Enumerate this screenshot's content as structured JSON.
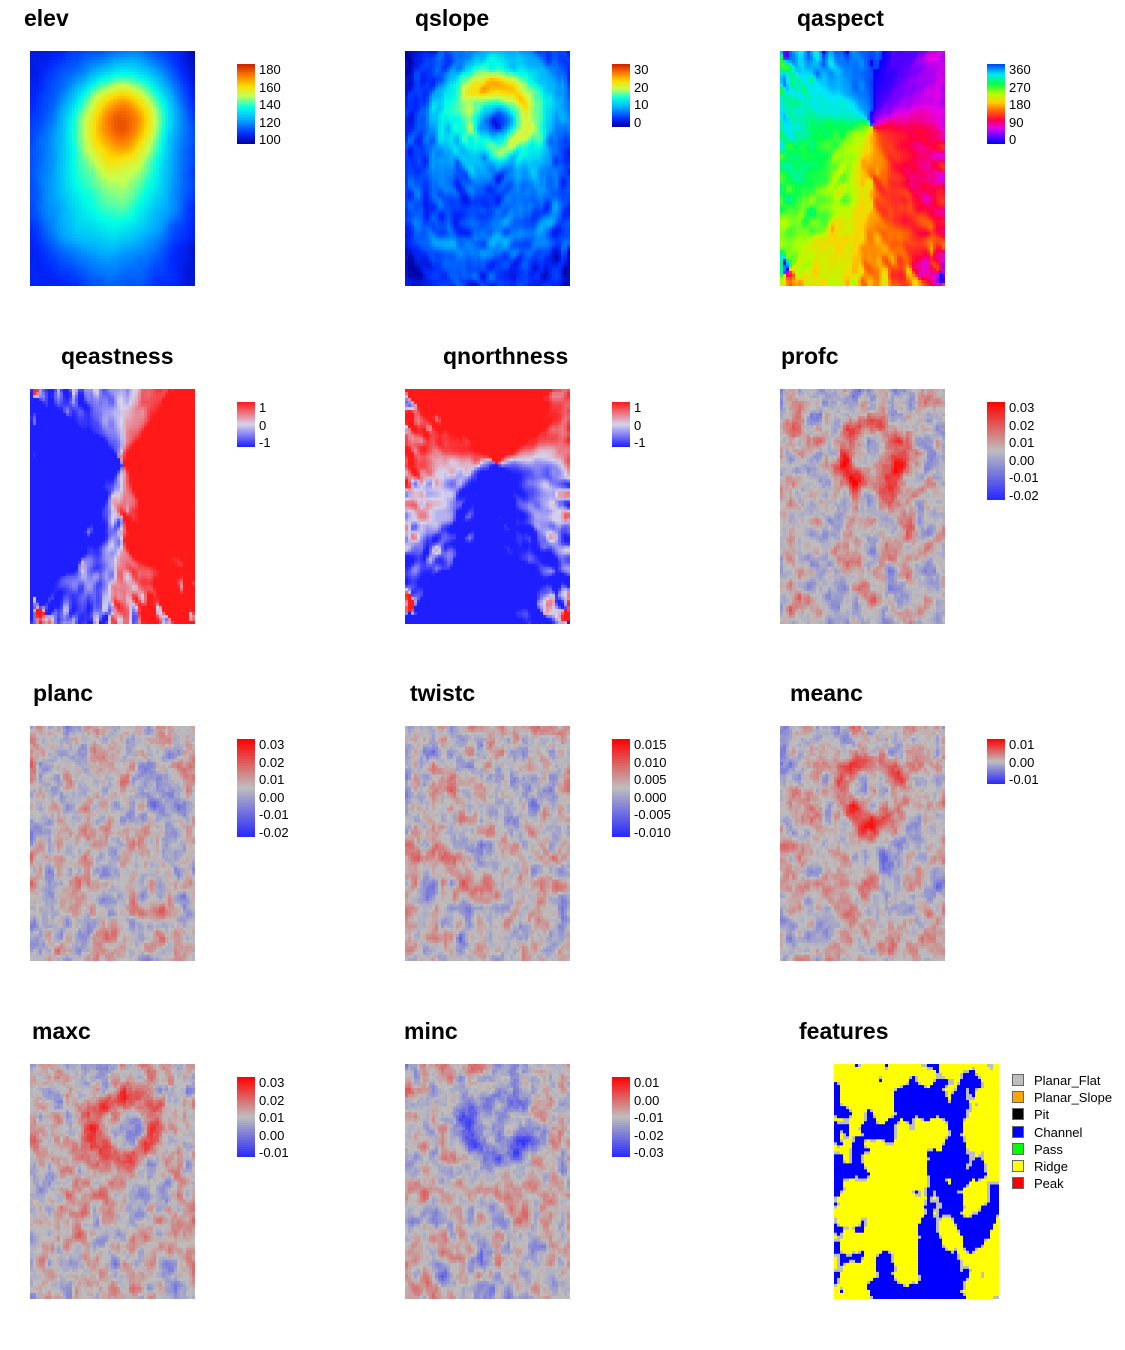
{
  "chart_data": [
    {
      "type": "heatmap",
      "title": "elev",
      "colormap": "rainbow",
      "legend": [
        "180",
        "160",
        "140",
        "120",
        "100"
      ],
      "zlim": [
        100,
        190
      ]
    },
    {
      "type": "heatmap",
      "title": "qslope",
      "colormap": "rainbow",
      "legend": [
        "30",
        "20",
        "10",
        "0"
      ],
      "zlim": [
        0,
        35
      ]
    },
    {
      "type": "heatmap",
      "title": "qaspect",
      "colormap": "hue",
      "legend": [
        "360",
        "270",
        "180",
        "90",
        "0"
      ],
      "zlim": [
        0,
        360
      ]
    },
    {
      "type": "heatmap",
      "title": "qeastness",
      "colormap": "bluered",
      "legend": [
        "1",
        "0",
        "-1"
      ],
      "zlim": [
        -1,
        1
      ]
    },
    {
      "type": "heatmap",
      "title": "qnorthness",
      "colormap": "bluered",
      "legend": [
        "1",
        "0",
        "-1"
      ],
      "zlim": [
        -1,
        1
      ]
    },
    {
      "type": "heatmap",
      "title": "profc",
      "colormap": "diverging",
      "legend": [
        "0.03",
        "0.02",
        "0.01",
        "0.00",
        "-0.01",
        "-0.02"
      ],
      "zlim": [
        -0.025,
        0.035
      ]
    },
    {
      "type": "heatmap",
      "title": "planc",
      "colormap": "diverging",
      "legend": [
        "0.03",
        "0.02",
        "0.01",
        "0.00",
        "-0.01",
        "-0.02"
      ],
      "zlim": [
        -0.025,
        0.035
      ]
    },
    {
      "type": "heatmap",
      "title": "twistc",
      "colormap": "diverging",
      "legend": [
        "0.015",
        "0.010",
        "0.005",
        "0.000",
        "-0.005",
        "-0.010"
      ],
      "zlim": [
        -0.0125,
        0.0175
      ]
    },
    {
      "type": "heatmap",
      "title": "meanc",
      "colormap": "diverging",
      "legend": [
        "0.01",
        "0.00",
        "-0.01"
      ],
      "zlim": [
        -0.015,
        0.015
      ]
    },
    {
      "type": "heatmap",
      "title": "maxc",
      "colormap": "diverging",
      "legend": [
        "0.03",
        "0.02",
        "0.01",
        "0.00",
        "-0.01"
      ],
      "zlim": [
        -0.015,
        0.035
      ]
    },
    {
      "type": "heatmap",
      "title": "minc",
      "colormap": "diverging",
      "legend": [
        "0.01",
        "0.00",
        "-0.01",
        "-0.02",
        "-0.03"
      ],
      "zlim": [
        -0.035,
        0.015
      ]
    },
    {
      "type": "heatmap",
      "title": "features",
      "colormap": "categorical",
      "legend": [
        {
          "name": "Planar_Flat",
          "color": "#bebebe"
        },
        {
          "name": "Planar_Slope",
          "color": "#ffa500"
        },
        {
          "name": "Pit",
          "color": "#000000"
        },
        {
          "name": "Channel",
          "color": "#0000ff"
        },
        {
          "name": "Pass",
          "color": "#00ff00"
        },
        {
          "name": "Ridge",
          "color": "#ffff00"
        },
        {
          "name": "Peak",
          "color": "#ff0000"
        }
      ]
    }
  ]
}
